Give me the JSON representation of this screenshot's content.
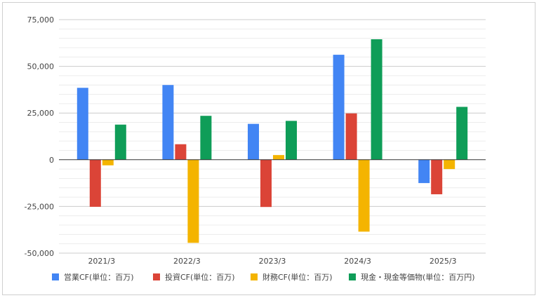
{
  "chart_data": {
    "type": "bar",
    "categories": [
      "2021/3",
      "2022/3",
      "2023/3",
      "2024/3",
      "2025/3"
    ],
    "series": [
      {
        "name": "営業CF(単位：百万)",
        "color": "#4285f4",
        "values": [
          38500,
          40000,
          19200,
          56200,
          -12500
        ]
      },
      {
        "name": "投資CF(単位：百万)",
        "color": "#db4437",
        "values": [
          -25200,
          8300,
          -25300,
          24800,
          -18500
        ]
      },
      {
        "name": "財務CF(単位：百万)",
        "color": "#f4b400",
        "values": [
          -3000,
          -44500,
          2500,
          -38500,
          -5000
        ]
      },
      {
        "name": "現金・現金等価物(単位：百万円)",
        "color": "#0f9d58",
        "values": [
          18800,
          23500,
          20800,
          64500,
          28300
        ]
      }
    ],
    "yticks": [
      "75,000",
      "50,000",
      "25,000",
      "0",
      "-25,000",
      "-50,000"
    ],
    "ytick_values": [
      75000,
      50000,
      25000,
      0,
      -25000,
      -50000
    ],
    "ylim": [
      -50000,
      75000
    ],
    "grid": true,
    "legend_position": "bottom",
    "title": "",
    "xlabel": "",
    "ylabel": ""
  }
}
